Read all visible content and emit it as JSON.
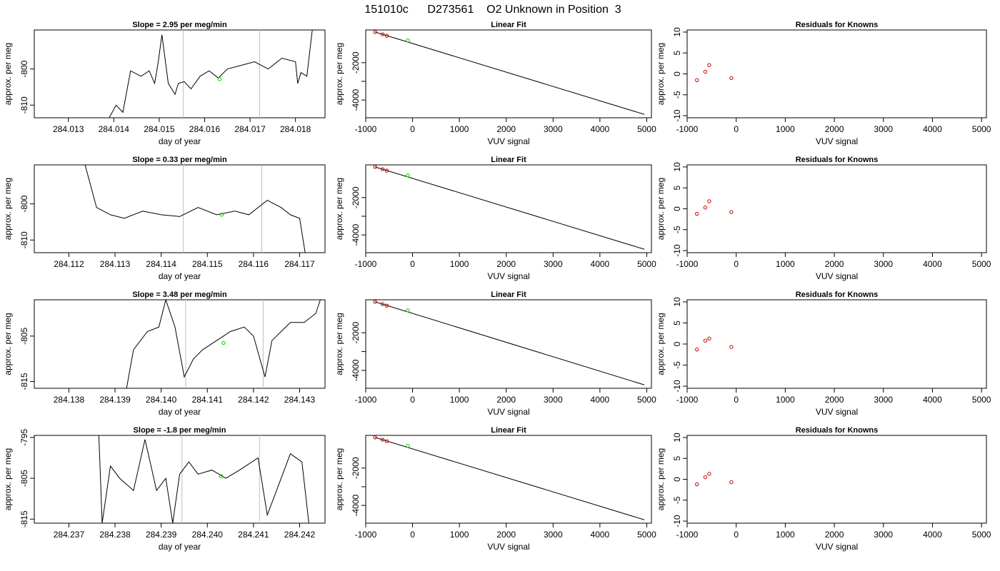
{
  "figure_title": "151010c      D273561    O2 Unknown in Position  3",
  "colors": {
    "series": "#000000",
    "unknown": "#00cc00",
    "known": "#cc0000",
    "vline": "#bebebe"
  },
  "chart_data": [
    {
      "type": "line",
      "row": 1,
      "col": 1,
      "title": "Slope =  2.95  per meg/min",
      "xlabel": "day of year",
      "ylabel": "approx. per meg",
      "xlim": [
        284.01225,
        284.01865
      ],
      "ylim": [
        -813.5,
        -789.2
      ],
      "xticks": [
        284.013,
        284.014,
        284.015,
        284.016,
        284.017,
        284.018
      ],
      "xticklabels": [
        "284.013",
        "284.014",
        "284.015",
        "284.016",
        "284.017",
        "284.018"
      ],
      "yticks": [
        -810,
        -800
      ],
      "yticklabels": [
        "-810",
        "-800"
      ],
      "vlines": [
        284.01553,
        284.01721
      ],
      "unknown_point": [
        284.01633,
        -802.8
      ],
      "series": [
        {
          "x": [
            284.0139,
            284.01405,
            284.0142,
            284.01437,
            284.0146,
            284.01478,
            284.0149,
            284.01498,
            284.01506,
            284.0152,
            284.01535,
            284.01542,
            284.01555,
            284.0157,
            284.0159,
            284.0161,
            284.0163,
            284.0165,
            284.0168,
            284.0171,
            284.0174,
            284.0177,
            284.018,
            284.01805,
            284.01812,
            284.01825,
            284.01837
          ],
          "y": [
            -813.5,
            -810,
            -812,
            -800.5,
            -802,
            -800.5,
            -804,
            -798,
            -790.5,
            -804,
            -807,
            -804,
            -803.5,
            -805.5,
            -802,
            -800.5,
            -802.5,
            -800,
            -799,
            -798,
            -800,
            -797,
            -798,
            -804,
            -801,
            -802,
            -789.2
          ]
        }
      ]
    },
    {
      "type": "scatter",
      "row": 1,
      "col": 2,
      "title": "Linear Fit",
      "xlabel": "VUV signal",
      "ylabel": "approx. per meg",
      "xlim": [
        -1000,
        5100
      ],
      "ylim": [
        -4950,
        -250
      ],
      "xticks": [
        -1000,
        0,
        1000,
        2000,
        3000,
        4000,
        5000
      ],
      "xticklabels": [
        "-1000",
        "0",
        "1000",
        "2000",
        "3000",
        "4000",
        "5000"
      ],
      "yticks": [
        -4000,
        -3000,
        -2000
      ],
      "yticklabels": [
        "-4000",
        "",
        "-2000"
      ],
      "fit_line": [
        [
          -800,
          -360
        ],
        [
          4950,
          -4770
        ]
      ],
      "known_points": [
        [
          -800,
          -360
        ],
        [
          -640,
          -480
        ],
        [
          -550,
          -560
        ]
      ],
      "unknown_point": [
        -100,
        -810
      ]
    },
    {
      "type": "scatter",
      "row": 1,
      "col": 3,
      "title": "Residuals for Knowns",
      "xlabel": "VUV signal",
      "ylabel": "approx. per meg",
      "xlim": [
        -1000,
        5100
      ],
      "ylim": [
        -10.5,
        10.5
      ],
      "xticks": [
        -1000,
        0,
        1000,
        2000,
        3000,
        4000,
        5000
      ],
      "xticklabels": [
        "-1000",
        "0",
        "1000",
        "2000",
        "3000",
        "4000",
        "5000"
      ],
      "yticks": [
        -10,
        -5,
        0,
        5,
        10
      ],
      "yticklabels": [
        "-10",
        "-5",
        "0",
        "5",
        "10"
      ],
      "known_points": [
        [
          -800,
          -1.5
        ],
        [
          -630,
          0.5
        ],
        [
          -550,
          2.1
        ],
        [
          -100,
          -1.0
        ]
      ]
    },
    {
      "type": "line",
      "row": 2,
      "col": 1,
      "title": "Slope =  0.33  per meg/min",
      "xlabel": "day of year",
      "ylabel": "approx. per meg",
      "xlim": [
        284.11125,
        284.11755
      ],
      "ylim": [
        -813.5,
        -789.2
      ],
      "xticks": [
        284.112,
        284.113,
        284.114,
        284.115,
        284.116,
        284.117
      ],
      "xticklabels": [
        "284.112",
        "284.113",
        "284.114",
        "284.115",
        "284.116",
        "284.117"
      ],
      "yticks": [
        -810,
        -800
      ],
      "yticklabels": [
        "-810",
        "-800"
      ],
      "vlines": [
        284.11448,
        284.11618
      ],
      "unknown_point": [
        284.11531,
        -803.0
      ],
      "series": [
        {
          "x": [
            284.11235,
            284.1126,
            284.1129,
            284.1132,
            284.1136,
            284.114,
            284.1144,
            284.1148,
            284.1152,
            284.1156,
            284.1159,
            284.1163,
            284.1166,
            284.1168,
            284.117,
            284.11712
          ],
          "y": [
            -789.2,
            -801,
            -803,
            -804,
            -802,
            -803,
            -803.5,
            -801,
            -803,
            -802,
            -803,
            -799,
            -801,
            -803,
            -804,
            -813.5
          ]
        }
      ]
    },
    {
      "type": "scatter",
      "row": 2,
      "col": 2,
      "title": "Linear Fit",
      "xlabel": "VUV signal",
      "ylabel": "approx. per meg",
      "xlim": [
        -1000,
        5100
      ],
      "ylim": [
        -4950,
        -250
      ],
      "xticks": [
        -1000,
        0,
        1000,
        2000,
        3000,
        4000,
        5000
      ],
      "xticklabels": [
        "-1000",
        "0",
        "1000",
        "2000",
        "3000",
        "4000",
        "5000"
      ],
      "yticks": [
        -4000,
        -3000,
        -2000
      ],
      "yticklabels": [
        "-4000",
        "",
        "-2000"
      ],
      "fit_line": [
        [
          -800,
          -360
        ],
        [
          4950,
          -4770
        ]
      ],
      "known_points": [
        [
          -800,
          -360
        ],
        [
          -640,
          -480
        ],
        [
          -550,
          -560
        ]
      ],
      "unknown_point": [
        -100,
        -810
      ]
    },
    {
      "type": "scatter",
      "row": 2,
      "col": 3,
      "title": "Residuals for Knowns",
      "xlabel": "VUV signal",
      "ylabel": "approx. per meg",
      "xlim": [
        -1000,
        5100
      ],
      "ylim": [
        -10.5,
        10.5
      ],
      "xticks": [
        -1000,
        0,
        1000,
        2000,
        3000,
        4000,
        5000
      ],
      "xticklabels": [
        "-1000",
        "0",
        "1000",
        "2000",
        "3000",
        "4000",
        "5000"
      ],
      "yticks": [
        -10,
        -5,
        0,
        5,
        10
      ],
      "yticklabels": [
        "-10",
        "-5",
        "0",
        "5",
        "10"
      ],
      "known_points": [
        [
          -800,
          -1.2
        ],
        [
          -630,
          0.3
        ],
        [
          -550,
          1.8
        ],
        [
          -100,
          -0.8
        ]
      ]
    },
    {
      "type": "line",
      "row": 3,
      "col": 1,
      "title": "Slope =  3.48  per meg/min",
      "xlabel": "day of year",
      "ylabel": "approx. per meg",
      "xlim": [
        284.13725,
        284.14355
      ],
      "ylim": [
        -816.5,
        -797
      ],
      "xticks": [
        284.138,
        284.139,
        284.14,
        284.141,
        284.142,
        284.143
      ],
      "xticklabels": [
        "284.138",
        "284.139",
        "284.140",
        "284.141",
        "284.142",
        "284.143"
      ],
      "yticks": [
        -815,
        -805
      ],
      "yticklabels": [
        "-815",
        "-805"
      ],
      "vlines": [
        284.14053,
        284.14221
      ],
      "unknown_point": [
        284.14135,
        -806.5
      ],
      "series": [
        {
          "x": [
            284.13925,
            284.1394,
            284.1397,
            284.13995,
            284.1401,
            284.1403,
            284.1405,
            284.1407,
            284.1409,
            284.1412,
            284.1415,
            284.1418,
            284.142,
            284.14225,
            284.1424,
            284.1426,
            284.1428,
            284.1431,
            284.14335,
            284.14345
          ],
          "y": [
            -816.5,
            -808,
            -804,
            -803,
            -797,
            -803,
            -814,
            -810,
            -808,
            -806,
            -804,
            -803,
            -805,
            -814,
            -806,
            -804,
            -802,
            -802,
            -800,
            -797
          ]
        }
      ]
    },
    {
      "type": "scatter",
      "row": 3,
      "col": 2,
      "title": "Linear Fit",
      "xlabel": "VUV signal",
      "ylabel": "approx. per meg",
      "xlim": [
        -1000,
        5100
      ],
      "ylim": [
        -4950,
        -250
      ],
      "xticks": [
        -1000,
        0,
        1000,
        2000,
        3000,
        4000,
        5000
      ],
      "xticklabels": [
        "-1000",
        "0",
        "1000",
        "2000",
        "3000",
        "4000",
        "5000"
      ],
      "yticks": [
        -4000,
        -3000,
        -2000
      ],
      "yticklabels": [
        "-4000",
        "",
        "-2000"
      ],
      "fit_line": [
        [
          -800,
          -360
        ],
        [
          4950,
          -4770
        ]
      ],
      "known_points": [
        [
          -800,
          -360
        ],
        [
          -640,
          -480
        ],
        [
          -550,
          -560
        ]
      ],
      "unknown_point": [
        -100,
        -810
      ]
    },
    {
      "type": "scatter",
      "row": 3,
      "col": 3,
      "title": "Residuals for Knowns",
      "xlabel": "VUV signal",
      "ylabel": "approx. per meg",
      "xlim": [
        -1000,
        5100
      ],
      "ylim": [
        -10.5,
        10.5
      ],
      "xticks": [
        -1000,
        0,
        1000,
        2000,
        3000,
        4000,
        5000
      ],
      "xticklabels": [
        "-1000",
        "0",
        "1000",
        "2000",
        "3000",
        "4000",
        "5000"
      ],
      "yticks": [
        -10,
        -5,
        0,
        5,
        10
      ],
      "yticklabels": [
        "-10",
        "-5",
        "0",
        "5",
        "10"
      ],
      "known_points": [
        [
          -800,
          -1.3
        ],
        [
          -630,
          0.8
        ],
        [
          -550,
          1.3
        ],
        [
          -100,
          -0.7
        ]
      ]
    },
    {
      "type": "line",
      "row": 4,
      "col": 1,
      "title": "Slope =  -1.8  per meg/min",
      "xlabel": "day of year",
      "ylabel": "approx. per meg",
      "xlim": [
        284.23625,
        284.24255
      ],
      "ylim": [
        -816,
        -794.5
      ],
      "xticks": [
        284.237,
        284.238,
        284.239,
        284.24,
        284.241,
        284.242
      ],
      "xticklabels": [
        "284.237",
        "284.238",
        "284.239",
        "284.240",
        "284.241",
        "284.242"
      ],
      "yticks": [
        -815,
        -805,
        -795
      ],
      "yticklabels": [
        "-815",
        "-805",
        "-795"
      ],
      "vlines": [
        284.23945,
        284.24113
      ],
      "unknown_point": [
        284.2403,
        -804.5
      ],
      "series": [
        {
          "x": [
            284.23765,
            284.23772,
            284.2379,
            284.2381,
            284.2384,
            284.23865,
            284.2389,
            284.2391,
            284.23925,
            284.2394,
            284.2396,
            284.2398,
            284.2401,
            284.2404,
            284.2407,
            284.2411,
            284.2413,
            284.2416,
            284.2418,
            284.24205,
            284.2422
          ],
          "y": [
            -794.5,
            -816,
            -802,
            -805,
            -808,
            -795.5,
            -808,
            -805,
            -816,
            -804,
            -801,
            -804,
            -803,
            -805,
            -803,
            -800,
            -814,
            -805,
            -799,
            -801,
            -816
          ]
        }
      ]
    },
    {
      "type": "scatter",
      "row": 4,
      "col": 2,
      "title": "Linear Fit",
      "xlabel": "VUV signal",
      "ylabel": "approx. per meg",
      "xlim": [
        -1000,
        5100
      ],
      "ylim": [
        -4950,
        -250
      ],
      "xticks": [
        -1000,
        0,
        1000,
        2000,
        3000,
        4000,
        5000
      ],
      "xticklabels": [
        "-1000",
        "0",
        "1000",
        "2000",
        "3000",
        "4000",
        "5000"
      ],
      "yticks": [
        -4000,
        -3000,
        -2000
      ],
      "yticklabels": [
        "-4000",
        "",
        "-2000"
      ],
      "fit_line": [
        [
          -800,
          -360
        ],
        [
          4950,
          -4770
        ]
      ],
      "known_points": [
        [
          -800,
          -360
        ],
        [
          -640,
          -480
        ],
        [
          -550,
          -560
        ]
      ],
      "unknown_point": [
        -100,
        -810
      ]
    },
    {
      "type": "scatter",
      "row": 4,
      "col": 3,
      "title": "Residuals for Knowns",
      "xlabel": "VUV signal",
      "ylabel": "approx. per meg",
      "xlim": [
        -1000,
        5100
      ],
      "ylim": [
        -10.5,
        10.5
      ],
      "xticks": [
        -1000,
        0,
        1000,
        2000,
        3000,
        4000,
        5000
      ],
      "xticklabels": [
        "-1000",
        "0",
        "1000",
        "2000",
        "3000",
        "4000",
        "5000"
      ],
      "yticks": [
        -10,
        -5,
        0,
        5,
        10
      ],
      "yticklabels": [
        "-10",
        "-5",
        "0",
        "5",
        "10"
      ],
      "known_points": [
        [
          -800,
          -1.2
        ],
        [
          -630,
          0.5
        ],
        [
          -550,
          1.3
        ],
        [
          -100,
          -0.7
        ]
      ]
    }
  ]
}
